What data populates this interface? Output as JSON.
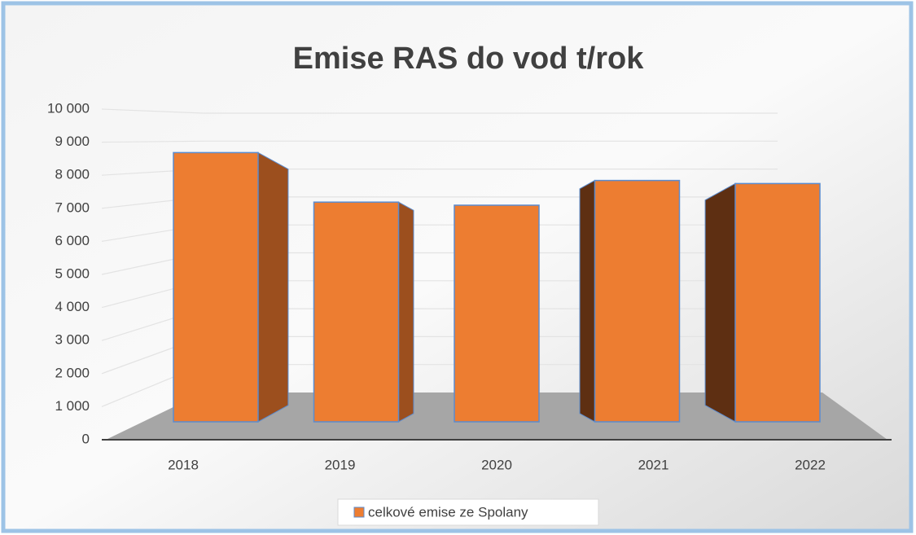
{
  "chart_data": {
    "type": "bar3d",
    "title": "Emise RAS do vod t/rok",
    "categories": [
      "2018",
      "2019",
      "2020",
      "2021",
      "2022"
    ],
    "series": [
      {
        "name": "celkové emise ze Spolany",
        "color": "#ed7d31",
        "values": [
          8700,
          7100,
          7000,
          7800,
          7700
        ]
      }
    ],
    "ylim": [
      0,
      10000
    ],
    "yticks": [
      {
        "value": 0,
        "label": "0"
      },
      {
        "value": 1000,
        "label": "1 000"
      },
      {
        "value": 2000,
        "label": "2 000"
      },
      {
        "value": 3000,
        "label": "3 000"
      },
      {
        "value": 4000,
        "label": "4 000"
      },
      {
        "value": 5000,
        "label": "5 000"
      },
      {
        "value": 6000,
        "label": "6 000"
      },
      {
        "value": 7000,
        "label": "7 000"
      },
      {
        "value": 8000,
        "label": "8 000"
      },
      {
        "value": 9000,
        "label": "9 000"
      },
      {
        "value": 10000,
        "label": "10 000"
      }
    ],
    "grid": true,
    "legend": "bottom"
  }
}
